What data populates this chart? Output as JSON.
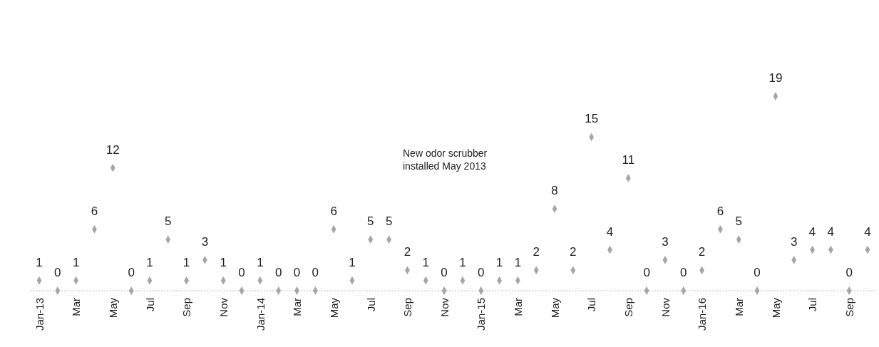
{
  "chart_data": {
    "type": "scatter",
    "marker": "diamond",
    "data_labels": true,
    "categories": [
      "Jan-13",
      null,
      "Mar",
      null,
      "May",
      null,
      "Jul",
      null,
      "Sep",
      null,
      "Nov",
      null,
      "Jan-14",
      null,
      "Mar",
      null,
      "May",
      null,
      "Jul",
      null,
      "Sep",
      null,
      "Nov",
      null,
      "Jan-15",
      null,
      "Mar",
      null,
      "May",
      null,
      "Jul",
      null,
      "Sep",
      null,
      "Nov",
      null,
      "Jan-16",
      null,
      "Mar",
      null,
      "May",
      null,
      "Jul",
      null,
      "Sep",
      null
    ],
    "series": [
      {
        "color": "#a6a6a6",
        "values": [
          1,
          0,
          1,
          6,
          12,
          0,
          1,
          5,
          1,
          3,
          1,
          0,
          1,
          0,
          0,
          0,
          6,
          1,
          5,
          5,
          2,
          1,
          0,
          1,
          0,
          1,
          1,
          2,
          8,
          2,
          15,
          4,
          11,
          0,
          3,
          0,
          2,
          6,
          5,
          0,
          19,
          3,
          4,
          4,
          0,
          4
        ]
      }
    ],
    "annotations": [
      "New odor scrubber\ninstalled May 2013"
    ]
  }
}
